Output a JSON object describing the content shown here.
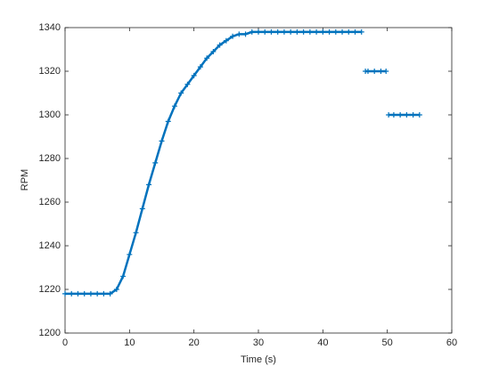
{
  "chart_data": {
    "type": "line",
    "x_label": "Time (s)",
    "y_label": "RPM",
    "x": [
      0,
      1,
      2,
      3,
      4,
      5,
      6,
      7,
      8,
      9,
      10,
      11,
      12,
      13,
      14,
      15,
      16,
      17,
      18,
      19,
      20,
      21,
      22,
      23,
      24,
      25,
      26,
      27,
      28,
      29,
      30,
      31,
      32,
      33,
      34,
      35,
      36,
      37,
      38,
      39,
      40,
      41,
      42,
      43,
      44,
      45,
      46,
      46.5,
      46.6,
      47,
      48,
      49,
      49.8,
      50,
      50.2,
      51,
      52,
      53,
      54,
      55
    ],
    "series": [
      {
        "name": "RPM",
        "color": "#0072bd",
        "marker": "+",
        "values": [
          1218,
          1218,
          1218,
          1218,
          1218,
          1218,
          1218,
          1218,
          1220,
          1226,
          1236,
          1246,
          1257,
          1268,
          1278,
          1288,
          1297,
          1304,
          1310,
          1314,
          1318,
          1322,
          1326,
          1329,
          1332,
          1334,
          1336,
          1337,
          1337,
          1338,
          1338,
          1338,
          1338,
          1338,
          1338,
          1338,
          1338,
          1338,
          1338,
          1338,
          1338,
          1338,
          1338,
          1338,
          1338,
          1338,
          1338,
          null,
          1320,
          1320,
          1320,
          1320,
          1320,
          null,
          1300,
          1300,
          1300,
          1300,
          1300,
          1300
        ]
      }
    ],
    "xlim": [
      0,
      60
    ],
    "xticks": [
      0,
      10,
      20,
      30,
      40,
      50,
      60
    ],
    "ylim": [
      1200,
      1340
    ],
    "yticks": [
      1200,
      1220,
      1240,
      1260,
      1280,
      1300,
      1320,
      1340
    ]
  }
}
